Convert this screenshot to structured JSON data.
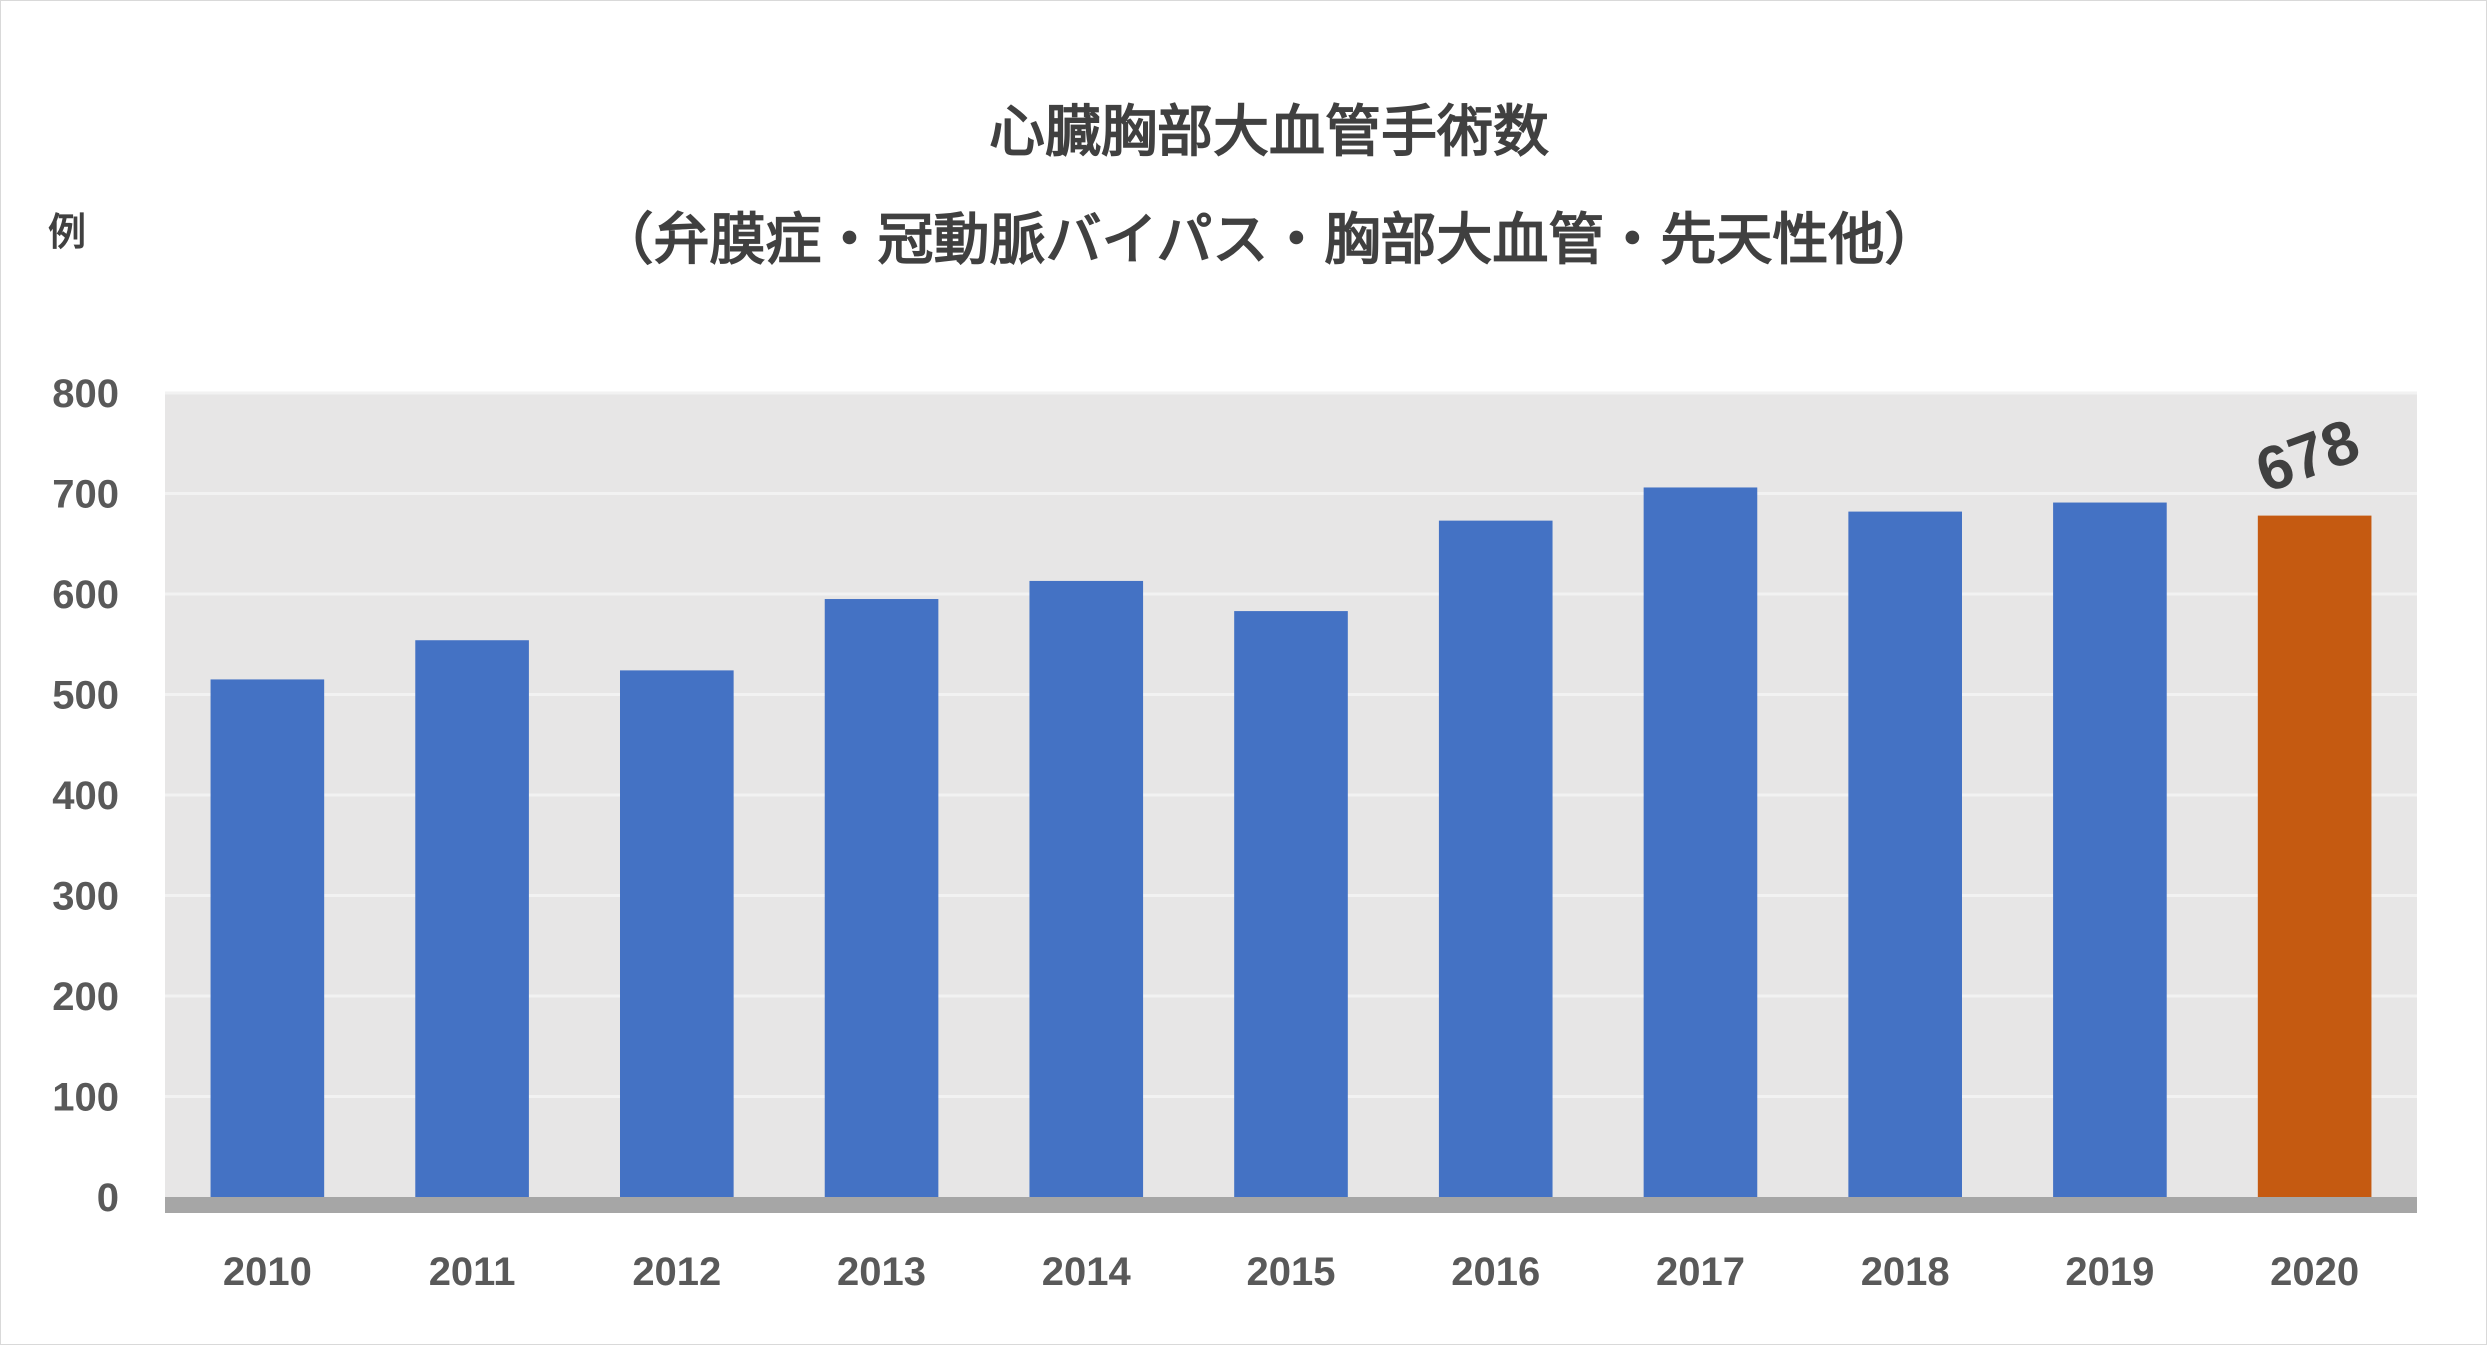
{
  "chart_data": {
    "type": "bar",
    "title": "心臓胸部大血管手術数",
    "subtitle": "（弁膜症・冠動脈バイパス・胸部大血管・先天性他）",
    "ylabel": "例",
    "xlabel": "",
    "ylim": [
      0,
      800
    ],
    "yticks": [
      "0",
      "100",
      "200",
      "300",
      "400",
      "500",
      "600",
      "700",
      "800"
    ],
    "categories": [
      "2010",
      "2011",
      "2012",
      "2013",
      "2014",
      "2015",
      "2016",
      "2017",
      "2018",
      "2019",
      "2020"
    ],
    "values": [
      515,
      554,
      524,
      595,
      613,
      583,
      673,
      706,
      682,
      691,
      678
    ],
    "highlight_index": 10,
    "data_labels": [
      {
        "index": 10,
        "text": "678"
      }
    ],
    "grid": true,
    "legend": "none",
    "colors": {
      "bar": "#4472C4",
      "highlight": "#C55A11",
      "plot_background": "#E7E6E6",
      "gridline": "#F2F2F2",
      "axis": "#A6A6A6"
    }
  }
}
